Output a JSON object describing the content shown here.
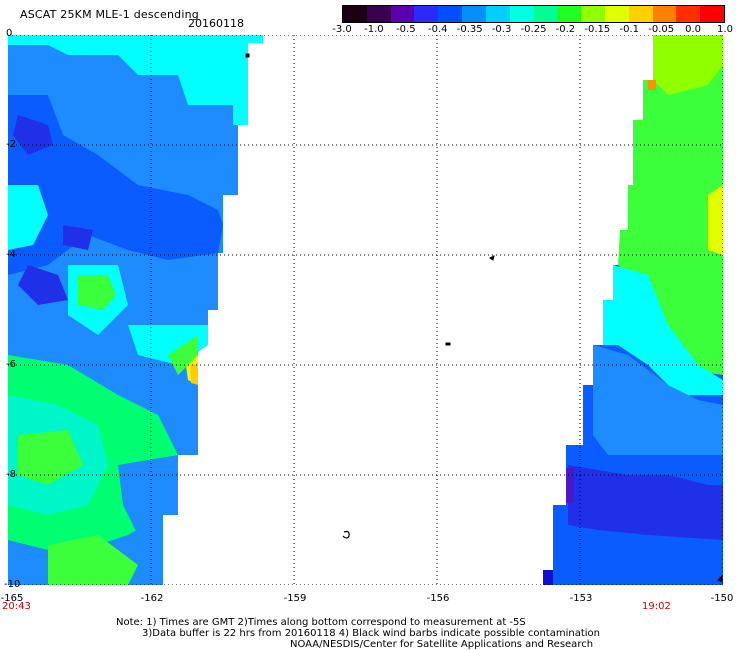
{
  "header": {
    "title": "ASCAT 25KM MLE-1 descending",
    "date": "20160118"
  },
  "colorbar": {
    "labels": [
      "-3.0",
      "-1.0",
      "-0.5",
      "-0.4",
      "-0.35",
      "-0.3",
      "-0.25",
      "-0.2",
      "-0.15",
      "-0.1",
      "-0.05",
      "0.0",
      "1.0"
    ],
    "colors": [
      "#1a0010",
      "#3a0050",
      "#5a00b0",
      "#2a2aff",
      "#0050ff",
      "#0090ff",
      "#00d0ff",
      "#00ffe0",
      "#00ff90",
      "#20ff20",
      "#90ff00",
      "#e0ff00",
      "#ffd000",
      "#ff8000",
      "#ff3000",
      "#ff0000"
    ]
  },
  "axes": {
    "y_labels": [
      "0",
      "-2",
      "-4",
      "-6",
      "-8",
      "-10"
    ],
    "x_labels": [
      "-165",
      "-162",
      "-159",
      "-156",
      "-153",
      "-150"
    ]
  },
  "times": {
    "left": "20:43",
    "right": "19:02"
  },
  "notes": {
    "line1": "Note: 1) Times are GMT 2)Times along bottom correspond to measurement at -5S",
    "line2": "3)Data buffer is 22 hrs from 20160118 4) Black wind barbs indicate possible contamination",
    "line3": "NOAA/NESDIS/Center for Satellite Applications and Research"
  },
  "palette": {
    "dark_blue": "#2030e8",
    "blue": "#0a5cff",
    "light_blue": "#1e8cff",
    "cyan": "#00ffff",
    "aqua": "#00f5c8",
    "green": "#3cff3c",
    "lime": "#00ff70",
    "yellow": "#f0ff00",
    "orange": "#ff9000",
    "gold": "#ffcc00"
  }
}
